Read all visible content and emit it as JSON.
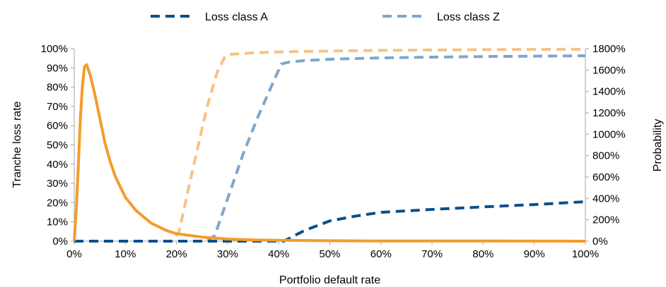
{
  "chart_data": {
    "type": "line",
    "title": "",
    "xlabel": "Portfolio default rate",
    "ylabel": "Tranche loss rate",
    "y2label": "Probability",
    "xlim": [
      0,
      100
    ],
    "ylim": [
      0,
      100
    ],
    "y2lim": [
      0,
      1800
    ],
    "x_ticks": [
      0,
      10,
      20,
      30,
      40,
      50,
      60,
      70,
      80,
      90,
      100
    ],
    "x_tick_labels": [
      "0%",
      "10%",
      "20%",
      "30%",
      "40%",
      "50%",
      "60%",
      "70%",
      "80%",
      "90%",
      "100%"
    ],
    "y_ticks": [
      0,
      10,
      20,
      30,
      40,
      50,
      60,
      70,
      80,
      90,
      100
    ],
    "y_tick_labels": [
      "0%",
      "10%",
      "20%",
      "30%",
      "40%",
      "50%",
      "60%",
      "70%",
      "80%",
      "90%",
      "100%"
    ],
    "y2_ticks": [
      0,
      200,
      400,
      600,
      800,
      1000,
      1200,
      1400,
      1600,
      1800
    ],
    "y2_tick_labels": [
      "0%",
      "200%",
      "400%",
      "600%",
      "800%",
      "1000%",
      "1200%",
      "1400%",
      "1600%",
      "1800%"
    ],
    "grid": false,
    "legend_position": "top",
    "series": [
      {
        "name": "Loss class A",
        "axis": "left",
        "style": "dashed",
        "color": "#0b4f8a",
        "x": [
          0,
          38,
          41,
          45,
          50,
          55,
          60,
          70,
          80,
          90,
          100
        ],
        "y": [
          0,
          0,
          0,
          5.5,
          10.5,
          13,
          15,
          16.5,
          17.8,
          19,
          20.5
        ]
      },
      {
        "name": "Loss class Z",
        "axis": "left",
        "style": "dashed",
        "color": "#7fa6cc",
        "x": [
          0,
          26,
          27.5,
          30,
          33,
          36,
          39,
          40.5,
          42,
          45,
          50,
          60,
          70,
          80,
          100
        ],
        "y": [
          0,
          0,
          3,
          22,
          45,
          65,
          83,
          92,
          93,
          93.8,
          94.5,
          95.2,
          95.6,
          95.9,
          96.3
        ]
      },
      {
        "axis": "left",
        "style": "dashed",
        "color": "#f6c283",
        "x": [
          0,
          19,
          20.5,
          23,
          26,
          28,
          29.5,
          30,
          35,
          40,
          50,
          60,
          70,
          80,
          100
        ],
        "y": [
          0,
          0,
          5,
          35,
          70,
          88,
          96,
          97,
          97.8,
          98.3,
          98.8,
          99.1,
          99.3,
          99.5,
          99.7
        ]
      },
      {
        "axis": "right",
        "style": "solid",
        "color": "#f39c2c",
        "x": [
          0,
          0.4,
          0.8,
          1.2,
          1.6,
          2.0,
          2.4,
          2.8,
          3.2,
          4,
          5,
          6,
          7,
          8,
          10,
          12,
          15,
          18,
          20,
          25,
          30,
          35,
          40,
          50,
          60,
          80,
          100
        ],
        "y": [
          0,
          300,
          700,
          1150,
          1450,
          1630,
          1650,
          1600,
          1540,
          1380,
          1150,
          920,
          750,
          610,
          410,
          290,
          170,
          100,
          70,
          38,
          20,
          12,
          8,
          4,
          2,
          1,
          0
        ]
      }
    ]
  }
}
